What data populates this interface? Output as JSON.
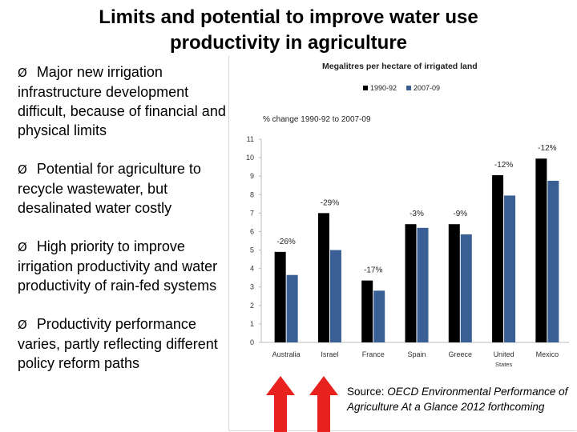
{
  "slide": {
    "title_line1": "Limits and potential to improve water use",
    "title_line2": "productivity in agriculture",
    "bullets": [
      "Major new irrigation infrastructure development difficult, because of financial and physical limits",
      "Potential for agriculture to recycle wastewater, but desalinated water costly",
      "High priority to improve irrigation productivity and water productivity of rain-fed systems",
      "Productivity performance varies, partly reflecting different policy reform paths"
    ],
    "bullet_mark": "Ø",
    "source_prefix": "Source: ",
    "source_italic": "OECD Environmental Performance  of Agriculture At a Glance 2012 forthcoming",
    "arrow_color": "#e8231f"
  },
  "chart_data": {
    "type": "bar",
    "title": "Megalitres per hectare of irrigated land",
    "subtitle": "% change 1990-92 to 2007-09",
    "categories": [
      "Australia",
      "Israel",
      "France",
      "Spain",
      "Greece",
      "United States",
      "Mexico"
    ],
    "series": [
      {
        "name": "1990-92",
        "color": "#000000",
        "values": [
          4.9,
          7.0,
          3.35,
          6.4,
          6.4,
          9.05,
          9.95
        ]
      },
      {
        "name": "2007-09",
        "color": "#3a5f94",
        "values": [
          3.65,
          5.0,
          2.8,
          6.2,
          5.85,
          7.95,
          8.75
        ]
      }
    ],
    "pct_change_labels": [
      "-26%",
      "-29%",
      "-17%",
      "-3%",
      "-9%",
      "-12%",
      "-12%"
    ],
    "ylim": [
      0,
      11
    ],
    "yticks": [
      "0",
      "1",
      "2",
      "3",
      "4",
      "5",
      "6",
      "7",
      "8",
      "9",
      "10",
      "11"
    ],
    "xlabel": "",
    "ylabel": ""
  }
}
